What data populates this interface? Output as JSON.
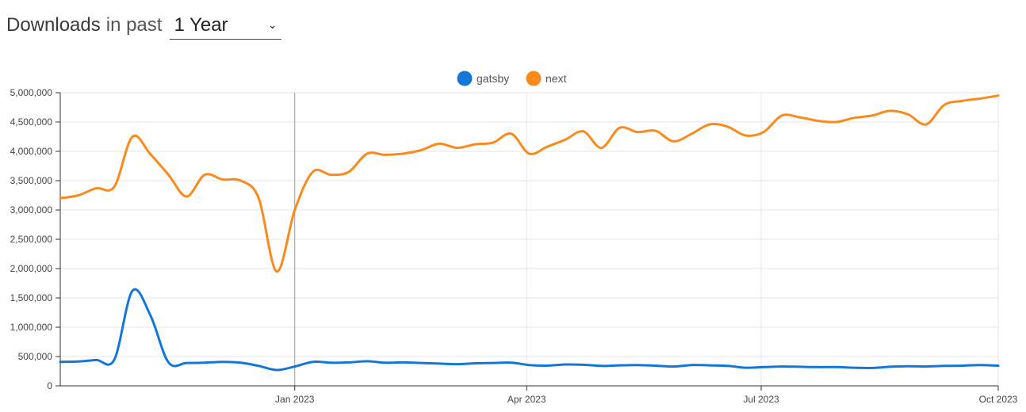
{
  "header": {
    "title": "Downloads",
    "in_past": "in past",
    "period_selected": "1 Year",
    "chevron_icon": "chevron-down-icon"
  },
  "chart_data": {
    "type": "line",
    "title": "",
    "xlabel": "",
    "ylabel": "",
    "ylim": [
      0,
      5000000
    ],
    "xlim": [
      "2022-10-02",
      "2023-10-01"
    ],
    "y_ticks": [
      0,
      500000,
      1000000,
      1500000,
      2000000,
      2500000,
      3000000,
      3500000,
      4000000,
      4500000,
      5000000
    ],
    "y_tick_labels": [
      "0",
      "500,000",
      "1,000,000",
      "1,500,000",
      "2,000,000",
      "2,500,000",
      "3,000,000",
      "3,500,000",
      "4,000,000",
      "4,500,000",
      "5,000,000"
    ],
    "x_ticks": [
      {
        "date": "2023-01-01",
        "label": "Jan 2023"
      },
      {
        "date": "2023-04-01",
        "label": "Apr 2023"
      },
      {
        "date": "2023-07-01",
        "label": "Jul 2023"
      },
      {
        "date": "2023-10-01",
        "label": "Oct 2023"
      }
    ],
    "grid": true,
    "legend_position": "top-center",
    "series": [
      {
        "name": "gatsby",
        "color": "#1477d6",
        "points": [
          [
            "2022-10-02",
            410000
          ],
          [
            "2022-10-09",
            415000
          ],
          [
            "2022-10-16",
            440000
          ],
          [
            "2022-10-23",
            450000
          ],
          [
            "2022-10-30",
            1620000
          ],
          [
            "2022-11-06",
            1200000
          ],
          [
            "2022-11-13",
            400000
          ],
          [
            "2022-11-20",
            390000
          ],
          [
            "2022-11-27",
            395000
          ],
          [
            "2022-12-04",
            410000
          ],
          [
            "2022-12-11",
            395000
          ],
          [
            "2022-12-18",
            340000
          ],
          [
            "2022-12-25",
            270000
          ],
          [
            "2023-01-01",
            330000
          ],
          [
            "2023-01-08",
            410000
          ],
          [
            "2023-01-15",
            395000
          ],
          [
            "2023-01-22",
            400000
          ],
          [
            "2023-01-29",
            420000
          ],
          [
            "2023-02-05",
            395000
          ],
          [
            "2023-02-12",
            400000
          ],
          [
            "2023-02-19",
            390000
          ],
          [
            "2023-02-26",
            380000
          ],
          [
            "2023-03-05",
            370000
          ],
          [
            "2023-03-12",
            385000
          ],
          [
            "2023-03-19",
            390000
          ],
          [
            "2023-03-26",
            395000
          ],
          [
            "2023-04-02",
            355000
          ],
          [
            "2023-04-09",
            345000
          ],
          [
            "2023-04-16",
            365000
          ],
          [
            "2023-04-23",
            360000
          ],
          [
            "2023-04-30",
            340000
          ],
          [
            "2023-05-07",
            350000
          ],
          [
            "2023-05-14",
            355000
          ],
          [
            "2023-05-21",
            345000
          ],
          [
            "2023-05-28",
            330000
          ],
          [
            "2023-06-04",
            355000
          ],
          [
            "2023-06-11",
            350000
          ],
          [
            "2023-06-18",
            340000
          ],
          [
            "2023-06-25",
            310000
          ],
          [
            "2023-07-02",
            320000
          ],
          [
            "2023-07-09",
            330000
          ],
          [
            "2023-07-16",
            325000
          ],
          [
            "2023-07-23",
            320000
          ],
          [
            "2023-07-30",
            320000
          ],
          [
            "2023-08-06",
            310000
          ],
          [
            "2023-08-13",
            305000
          ],
          [
            "2023-08-20",
            325000
          ],
          [
            "2023-08-27",
            335000
          ],
          [
            "2023-09-03",
            330000
          ],
          [
            "2023-09-10",
            340000
          ],
          [
            "2023-09-17",
            345000
          ],
          [
            "2023-09-24",
            355000
          ],
          [
            "2023-10-01",
            345000
          ]
        ]
      },
      {
        "name": "next",
        "color": "#f98a1c",
        "points": [
          [
            "2022-10-02",
            3200000
          ],
          [
            "2022-10-09",
            3250000
          ],
          [
            "2022-10-16",
            3370000
          ],
          [
            "2022-10-23",
            3400000
          ],
          [
            "2022-10-30",
            4250000
          ],
          [
            "2022-11-06",
            3950000
          ],
          [
            "2022-11-13",
            3600000
          ],
          [
            "2022-11-20",
            3230000
          ],
          [
            "2022-11-27",
            3600000
          ],
          [
            "2022-12-04",
            3520000
          ],
          [
            "2022-12-11",
            3500000
          ],
          [
            "2022-12-18",
            3200000
          ],
          [
            "2022-12-25",
            1950000
          ],
          [
            "2023-01-01",
            3000000
          ],
          [
            "2023-01-08",
            3650000
          ],
          [
            "2023-01-15",
            3600000
          ],
          [
            "2023-01-22",
            3650000
          ],
          [
            "2023-01-29",
            3960000
          ],
          [
            "2023-02-05",
            3940000
          ],
          [
            "2023-02-12",
            3960000
          ],
          [
            "2023-02-19",
            4020000
          ],
          [
            "2023-02-26",
            4130000
          ],
          [
            "2023-03-05",
            4060000
          ],
          [
            "2023-03-12",
            4120000
          ],
          [
            "2023-03-19",
            4150000
          ],
          [
            "2023-03-26",
            4300000
          ],
          [
            "2023-04-02",
            3960000
          ],
          [
            "2023-04-09",
            4080000
          ],
          [
            "2023-04-16",
            4200000
          ],
          [
            "2023-04-23",
            4340000
          ],
          [
            "2023-04-30",
            4060000
          ],
          [
            "2023-05-07",
            4400000
          ],
          [
            "2023-05-14",
            4330000
          ],
          [
            "2023-05-21",
            4350000
          ],
          [
            "2023-05-28",
            4170000
          ],
          [
            "2023-06-04",
            4300000
          ],
          [
            "2023-06-11",
            4460000
          ],
          [
            "2023-06-18",
            4420000
          ],
          [
            "2023-06-25",
            4270000
          ],
          [
            "2023-07-02",
            4330000
          ],
          [
            "2023-07-09",
            4610000
          ],
          [
            "2023-07-16",
            4580000
          ],
          [
            "2023-07-23",
            4520000
          ],
          [
            "2023-07-30",
            4500000
          ],
          [
            "2023-08-06",
            4570000
          ],
          [
            "2023-08-13",
            4610000
          ],
          [
            "2023-08-20",
            4690000
          ],
          [
            "2023-08-27",
            4630000
          ],
          [
            "2023-09-03",
            4460000
          ],
          [
            "2023-09-10",
            4790000
          ],
          [
            "2023-09-17",
            4860000
          ],
          [
            "2023-09-24",
            4900000
          ],
          [
            "2023-10-01",
            4950000
          ]
        ]
      }
    ],
    "colors": {
      "grid": "#e6e6e6",
      "axis": "#333333",
      "annotation_line": "#999999"
    }
  }
}
